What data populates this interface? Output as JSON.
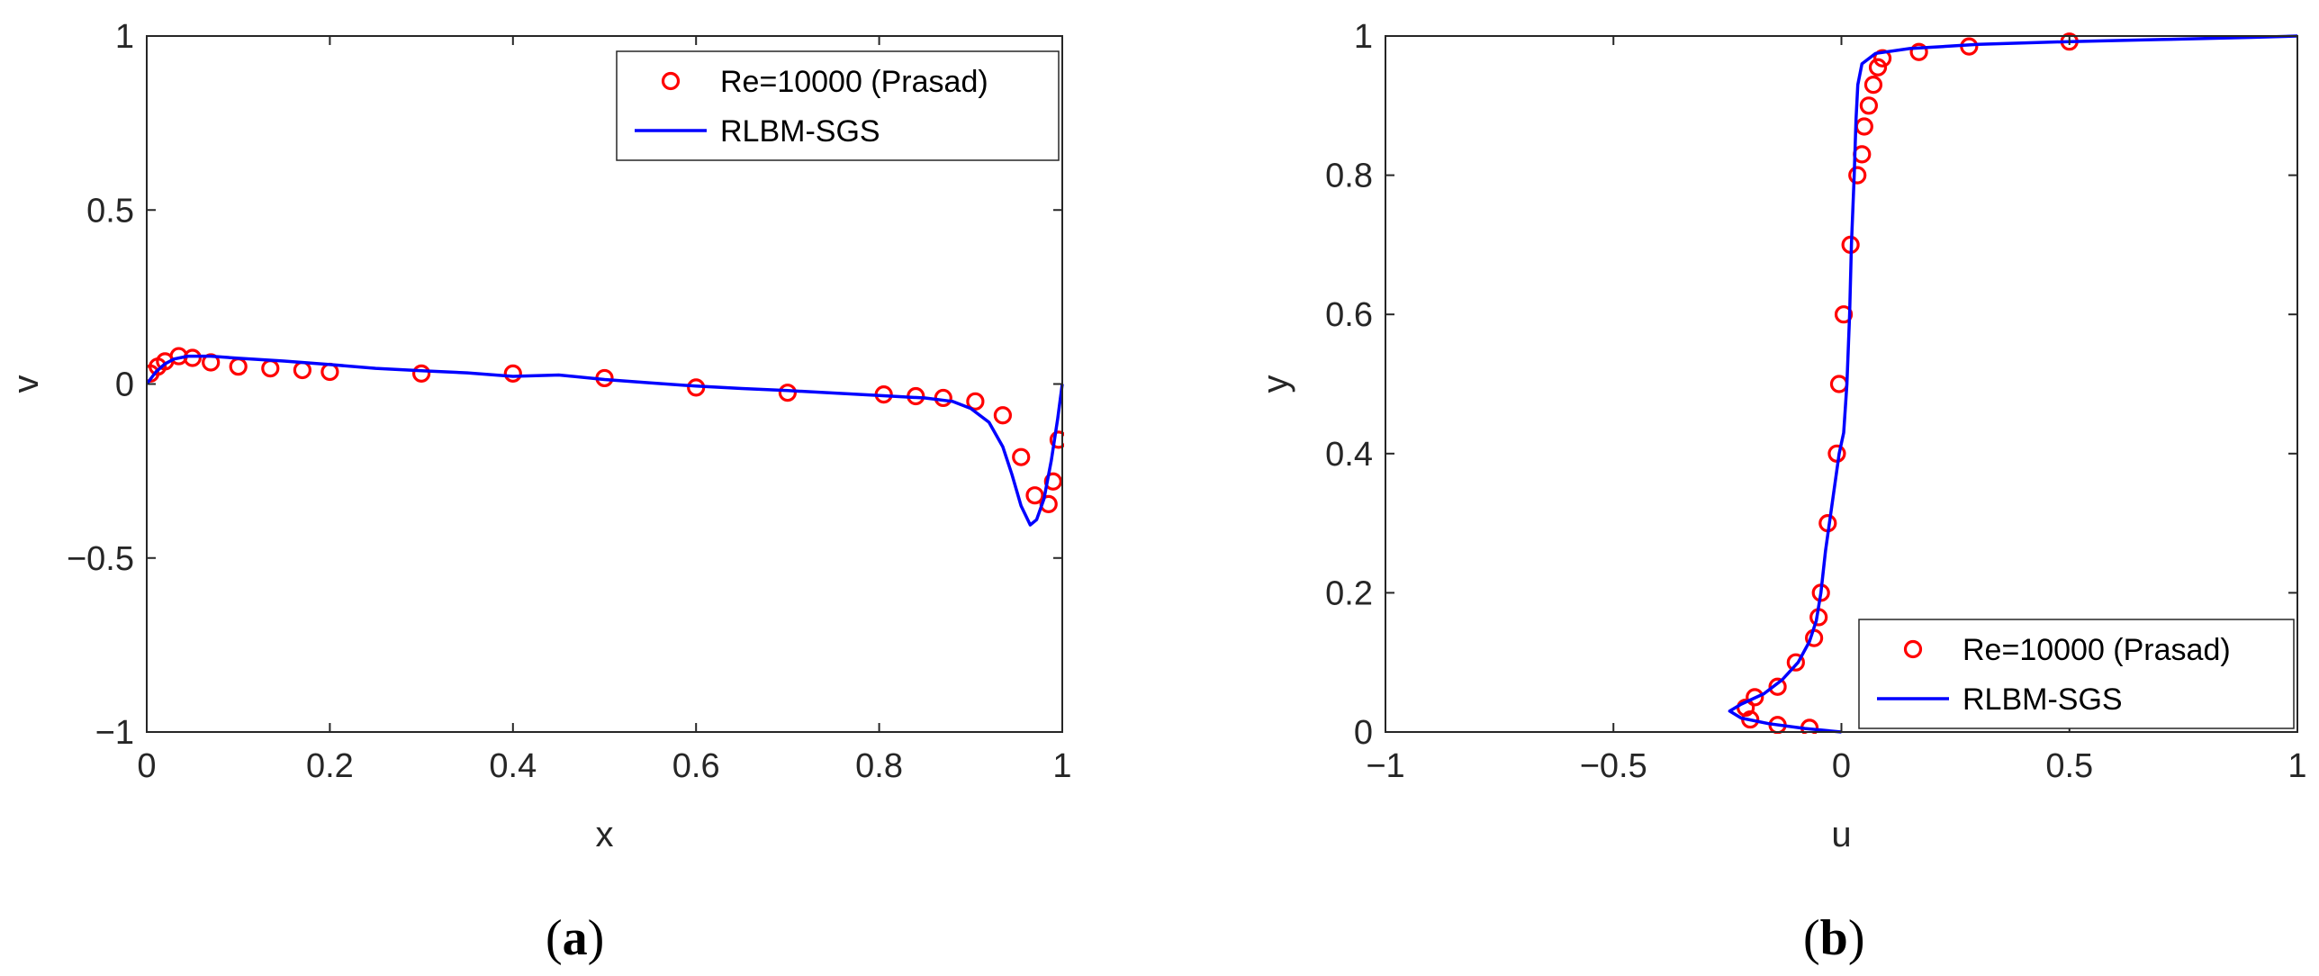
{
  "chart_data": [
    {
      "type": "line",
      "caption": {
        "open": "(",
        "letter": "a",
        "close": ")"
      },
      "xlabel": "x",
      "ylabel": "v",
      "xlim": [
        0,
        1
      ],
      "ylim": [
        -1,
        1
      ],
      "xticks": [
        0,
        0.2,
        0.4,
        0.6,
        0.8,
        1
      ],
      "xtick_labels": [
        "0",
        "0.2",
        "0.4",
        "0.6",
        "0.8",
        "1"
      ],
      "yticks": [
        -1,
        -0.5,
        0,
        0.5,
        1
      ],
      "ytick_labels": [
        "−1",
        "−0.5",
        "0",
        "0.5",
        "1"
      ],
      "legend_position": "top-right",
      "series": [
        {
          "name": "Re=10000 (Prasad)",
          "style": "markers",
          "color": "#ff0000",
          "points": [
            [
              0.004,
              0.03
            ],
            [
              0.012,
              0.05
            ],
            [
              0.02,
              0.065
            ],
            [
              0.035,
              0.08
            ],
            [
              0.05,
              0.075
            ],
            [
              0.07,
              0.062
            ],
            [
              0.1,
              0.05
            ],
            [
              0.135,
              0.045
            ],
            [
              0.17,
              0.04
            ],
            [
              0.2,
              0.035
            ],
            [
              0.3,
              0.03
            ],
            [
              0.4,
              0.03
            ],
            [
              0.5,
              0.017
            ],
            [
              0.6,
              -0.01
            ],
            [
              0.7,
              -0.025
            ],
            [
              0.805,
              -0.03
            ],
            [
              0.84,
              -0.035
            ],
            [
              0.87,
              -0.04
            ],
            [
              0.905,
              -0.05
            ],
            [
              0.935,
              -0.09
            ],
            [
              0.955,
              -0.21
            ],
            [
              0.97,
              -0.32
            ],
            [
              0.985,
              -0.345
            ],
            [
              0.99,
              -0.28
            ],
            [
              0.996,
              -0.16
            ]
          ]
        },
        {
          "name": "RLBM-SGS",
          "style": "line",
          "color": "#0000ff",
          "points": [
            [
              0,
              0
            ],
            [
              0.01,
              0.035
            ],
            [
              0.02,
              0.058
            ],
            [
              0.03,
              0.072
            ],
            [
              0.045,
              0.08
            ],
            [
              0.07,
              0.08
            ],
            [
              0.1,
              0.074
            ],
            [
              0.15,
              0.066
            ],
            [
              0.2,
              0.056
            ],
            [
              0.25,
              0.045
            ],
            [
              0.3,
              0.038
            ],
            [
              0.35,
              0.032
            ],
            [
              0.4,
              0.022
            ],
            [
              0.45,
              0.026
            ],
            [
              0.5,
              0.013
            ],
            [
              0.55,
              0.003
            ],
            [
              0.6,
              -0.006
            ],
            [
              0.65,
              -0.013
            ],
            [
              0.7,
              -0.019
            ],
            [
              0.75,
              -0.026
            ],
            [
              0.8,
              -0.033
            ],
            [
              0.85,
              -0.04
            ],
            [
              0.88,
              -0.05
            ],
            [
              0.9,
              -0.07
            ],
            [
              0.92,
              -0.11
            ],
            [
              0.935,
              -0.18
            ],
            [
              0.945,
              -0.26
            ],
            [
              0.955,
              -0.35
            ],
            [
              0.965,
              -0.405
            ],
            [
              0.972,
              -0.39
            ],
            [
              0.98,
              -0.33
            ],
            [
              0.988,
              -0.22
            ],
            [
              0.995,
              -0.1
            ],
            [
              1,
              0
            ]
          ]
        }
      ]
    },
    {
      "type": "line",
      "caption": {
        "open": "(",
        "letter": "b",
        "close": ")"
      },
      "xlabel": "u",
      "ylabel": "y",
      "xlim": [
        -1,
        1
      ],
      "ylim": [
        0,
        1
      ],
      "xticks": [
        -1,
        -0.5,
        0,
        0.5,
        1
      ],
      "xtick_labels": [
        "−1",
        "−0.5",
        "0",
        "0.5",
        "1"
      ],
      "yticks": [
        0,
        0.2,
        0.4,
        0.6,
        0.8,
        1
      ],
      "ytick_labels": [
        "0",
        "0.2",
        "0.4",
        "0.6",
        "0.8",
        "1"
      ],
      "legend_position": "bottom-right",
      "series": [
        {
          "name": "Re=10000 (Prasad)",
          "style": "markers",
          "color": "#ff0000",
          "points": [
            [
              -0.07,
              0.006
            ],
            [
              -0.14,
              0.01
            ],
            [
              -0.2,
              0.018
            ],
            [
              -0.21,
              0.035
            ],
            [
              -0.19,
              0.05
            ],
            [
              -0.14,
              0.065
            ],
            [
              -0.1,
              0.1
            ],
            [
              -0.06,
              0.135
            ],
            [
              -0.05,
              0.165
            ],
            [
              -0.045,
              0.2
            ],
            [
              -0.03,
              0.3
            ],
            [
              -0.01,
              0.4
            ],
            [
              -0.005,
              0.5
            ],
            [
              0.005,
              0.6
            ],
            [
              0.02,
              0.7
            ],
            [
              0.035,
              0.8
            ],
            [
              0.045,
              0.83
            ],
            [
              0.05,
              0.87
            ],
            [
              0.06,
              0.9
            ],
            [
              0.07,
              0.93
            ],
            [
              0.08,
              0.955
            ],
            [
              0.09,
              0.968
            ],
            [
              0.17,
              0.977
            ],
            [
              0.28,
              0.985
            ],
            [
              0.5,
              0.992
            ]
          ]
        },
        {
          "name": "RLBM-SGS",
          "style": "line",
          "color": "#0000ff",
          "points": [
            [
              0,
              0
            ],
            [
              -0.08,
              0.005
            ],
            [
              -0.16,
              0.012
            ],
            [
              -0.22,
              0.02
            ],
            [
              -0.245,
              0.03
            ],
            [
              -0.22,
              0.04
            ],
            [
              -0.17,
              0.055
            ],
            [
              -0.13,
              0.075
            ],
            [
              -0.095,
              0.1
            ],
            [
              -0.07,
              0.13
            ],
            [
              -0.055,
              0.16
            ],
            [
              -0.045,
              0.2
            ],
            [
              -0.035,
              0.26
            ],
            [
              -0.02,
              0.33
            ],
            [
              -0.005,
              0.4
            ],
            [
              0.005,
              0.43
            ],
            [
              0.012,
              0.5
            ],
            [
              0.018,
              0.6
            ],
            [
              0.022,
              0.7
            ],
            [
              0.028,
              0.8
            ],
            [
              0.032,
              0.88
            ],
            [
              0.036,
              0.93
            ],
            [
              0.045,
              0.96
            ],
            [
              0.075,
              0.975
            ],
            [
              0.15,
              0.982
            ],
            [
              0.3,
              0.988
            ],
            [
              0.5,
              0.992
            ],
            [
              0.7,
              0.995
            ],
            [
              0.9,
              0.998
            ],
            [
              1,
              1
            ]
          ]
        }
      ]
    }
  ]
}
